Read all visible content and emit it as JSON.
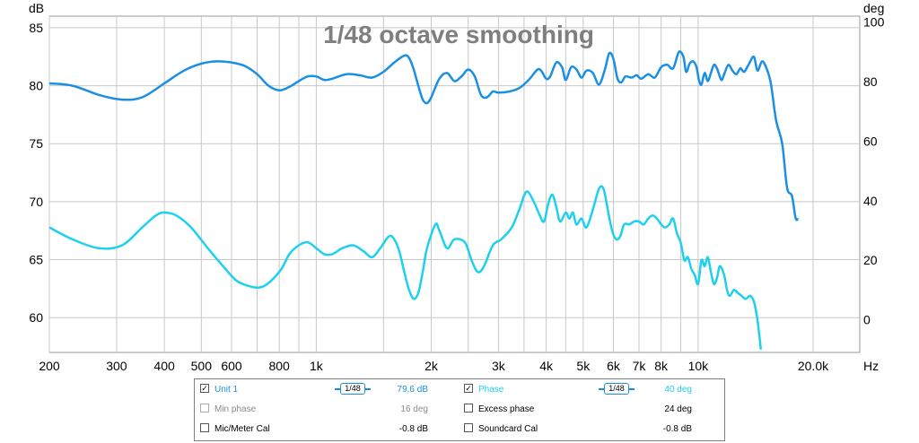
{
  "chart_data": {
    "type": "line",
    "title": "1/48 octave smoothing",
    "x_unit": "Hz",
    "y_left_unit": "dB",
    "y_right_unit": "deg",
    "x_scale": "log",
    "xlim": [
      200,
      26500
    ],
    "ylim_left": [
      57,
      86
    ],
    "ylim_right": [
      -11,
      102
    ],
    "grid": true,
    "x_ticks": [
      {
        "value": 200,
        "label": "200"
      },
      {
        "value": 300,
        "label": "300"
      },
      {
        "value": 400,
        "label": "400"
      },
      {
        "value": 500,
        "label": "500"
      },
      {
        "value": 600,
        "label": "600"
      },
      {
        "value": 800,
        "label": "800"
      },
      {
        "value": 1000,
        "label": "1k"
      },
      {
        "value": 2000,
        "label": "2k"
      },
      {
        "value": 3000,
        "label": "3k"
      },
      {
        "value": 4000,
        "label": "4k"
      },
      {
        "value": 5000,
        "label": "5k"
      },
      {
        "value": 6000,
        "label": "6k"
      },
      {
        "value": 7000,
        "label": "7k"
      },
      {
        "value": 8000,
        "label": "8k"
      },
      {
        "value": 10000,
        "label": "10k"
      },
      {
        "value": 20000,
        "label": "20.0k"
      }
    ],
    "x_minor_grid": [
      700,
      900,
      1500,
      2500,
      3500,
      4500,
      9000
    ],
    "y_left_ticks": [
      60,
      65,
      70,
      75,
      80,
      85
    ],
    "y_right_ticks": [
      0,
      20,
      40,
      60,
      80,
      100
    ],
    "series": [
      {
        "name": "Unit 1",
        "axis": "left",
        "color": "#1a8fe3",
        "points": [
          [
            200,
            80.2
          ],
          [
            230,
            80.0
          ],
          [
            270,
            79.2
          ],
          [
            310,
            78.8
          ],
          [
            350,
            79.0
          ],
          [
            400,
            80.2
          ],
          [
            450,
            81.3
          ],
          [
            500,
            81.9
          ],
          [
            550,
            82.1
          ],
          [
            600,
            82.0
          ],
          [
            650,
            81.7
          ],
          [
            700,
            81.0
          ],
          [
            750,
            80.0
          ],
          [
            800,
            79.6
          ],
          [
            850,
            79.9
          ],
          [
            900,
            80.4
          ],
          [
            950,
            80.8
          ],
          [
            1000,
            80.8
          ],
          [
            1050,
            80.5
          ],
          [
            1100,
            80.6
          ],
          [
            1200,
            81.0
          ],
          [
            1300,
            80.9
          ],
          [
            1400,
            80.7
          ],
          [
            1500,
            81.2
          ],
          [
            1600,
            82.0
          ],
          [
            1700,
            82.6
          ],
          [
            1750,
            82.4
          ],
          [
            1800,
            81.4
          ],
          [
            1850,
            80.0
          ],
          [
            1900,
            78.8
          ],
          [
            1950,
            78.5
          ],
          [
            2000,
            79.0
          ],
          [
            2100,
            80.6
          ],
          [
            2200,
            81.1
          ],
          [
            2300,
            80.4
          ],
          [
            2400,
            80.8
          ],
          [
            2500,
            81.4
          ],
          [
            2600,
            80.8
          ],
          [
            2700,
            79.2
          ],
          [
            2800,
            79.0
          ],
          [
            2900,
            79.5
          ],
          [
            3000,
            79.4
          ],
          [
            3200,
            79.5
          ],
          [
            3400,
            79.8
          ],
          [
            3600,
            80.5
          ],
          [
            3800,
            81.4
          ],
          [
            3900,
            81.2
          ],
          [
            4000,
            80.6
          ],
          [
            4100,
            80.8
          ],
          [
            4250,
            82.0
          ],
          [
            4400,
            81.6
          ],
          [
            4500,
            80.5
          ],
          [
            4650,
            81.6
          ],
          [
            4800,
            81.4
          ],
          [
            4950,
            80.7
          ],
          [
            5100,
            81.3
          ],
          [
            5300,
            81.1
          ],
          [
            5500,
            80.1
          ],
          [
            5700,
            81.4
          ],
          [
            5850,
            82.8
          ],
          [
            6000,
            82.3
          ],
          [
            6150,
            80.6
          ],
          [
            6300,
            80.3
          ],
          [
            6450,
            80.8
          ],
          [
            6700,
            80.7
          ],
          [
            6900,
            80.9
          ],
          [
            7100,
            80.6
          ],
          [
            7400,
            81.0
          ],
          [
            7700,
            80.7
          ],
          [
            8000,
            81.6
          ],
          [
            8300,
            81.8
          ],
          [
            8600,
            81.5
          ],
          [
            8900,
            82.9
          ],
          [
            9150,
            82.5
          ],
          [
            9300,
            81.2
          ],
          [
            9500,
            81.9
          ],
          [
            9700,
            82.1
          ],
          [
            9900,
            81.6
          ],
          [
            10050,
            80.5
          ],
          [
            10200,
            80.1
          ],
          [
            10400,
            81.1
          ],
          [
            10600,
            80.4
          ],
          [
            10800,
            81.1
          ],
          [
            11000,
            81.8
          ],
          [
            11200,
            81.5
          ],
          [
            11500,
            80.5
          ],
          [
            11700,
            81.0
          ],
          [
            12000,
            81.8
          ],
          [
            12300,
            81.3
          ],
          [
            12600,
            81.0
          ],
          [
            12900,
            81.5
          ],
          [
            13200,
            81.2
          ],
          [
            13600,
            81.9
          ],
          [
            14000,
            82.5
          ],
          [
            14300,
            81.3
          ],
          [
            14700,
            82.1
          ],
          [
            15100,
            81.5
          ],
          [
            15500,
            80.2
          ],
          [
            16000,
            77.0
          ],
          [
            16600,
            75.0
          ],
          [
            17100,
            71.2
          ],
          [
            17600,
            70.5
          ],
          [
            18000,
            68.6
          ],
          [
            18300,
            68.5
          ]
        ]
      },
      {
        "name": "Phase",
        "axis": "right",
        "color": "#1dd0f0",
        "points": [
          [
            200,
            31
          ],
          [
            230,
            27
          ],
          [
            270,
            24
          ],
          [
            310,
            25
          ],
          [
            350,
            31
          ],
          [
            380,
            35
          ],
          [
            400,
            36
          ],
          [
            430,
            35
          ],
          [
            470,
            31
          ],
          [
            520,
            24
          ],
          [
            570,
            18
          ],
          [
            620,
            13
          ],
          [
            680,
            11
          ],
          [
            720,
            11
          ],
          [
            760,
            13
          ],
          [
            810,
            17
          ],
          [
            850,
            22
          ],
          [
            900,
            25
          ],
          [
            950,
            26
          ],
          [
            1000,
            24
          ],
          [
            1050,
            22
          ],
          [
            1100,
            22
          ],
          [
            1170,
            24
          ],
          [
            1250,
            25
          ],
          [
            1330,
            23
          ],
          [
            1400,
            21
          ],
          [
            1470,
            24
          ],
          [
            1550,
            28
          ],
          [
            1600,
            27
          ],
          [
            1650,
            23
          ],
          [
            1700,
            16
          ],
          [
            1750,
            10
          ],
          [
            1800,
            7
          ],
          [
            1850,
            9
          ],
          [
            1900,
            16
          ],
          [
            1950,
            24
          ],
          [
            2050,
            32
          ],
          [
            2100,
            30
          ],
          [
            2200,
            24
          ],
          [
            2300,
            27
          ],
          [
            2450,
            26
          ],
          [
            2550,
            20
          ],
          [
            2650,
            16
          ],
          [
            2750,
            18
          ],
          [
            2900,
            25
          ],
          [
            3050,
            27
          ],
          [
            3250,
            31
          ],
          [
            3400,
            37
          ],
          [
            3550,
            43
          ],
          [
            3700,
            40
          ],
          [
            3850,
            35
          ],
          [
            3950,
            33
          ],
          [
            4050,
            39
          ],
          [
            4150,
            42
          ],
          [
            4250,
            38
          ],
          [
            4350,
            33
          ],
          [
            4500,
            36
          ],
          [
            4600,
            34
          ],
          [
            4700,
            36
          ],
          [
            4800,
            32
          ],
          [
            4950,
            34
          ],
          [
            5100,
            31
          ],
          [
            5300,
            37
          ],
          [
            5500,
            44
          ],
          [
            5650,
            44
          ],
          [
            5800,
            37
          ],
          [
            5950,
            30
          ],
          [
            6100,
            27
          ],
          [
            6250,
            28
          ],
          [
            6400,
            32
          ],
          [
            6600,
            32
          ],
          [
            6800,
            33
          ],
          [
            7000,
            33
          ],
          [
            7200,
            32
          ],
          [
            7400,
            34
          ],
          [
            7600,
            35
          ],
          [
            7800,
            34
          ],
          [
            8000,
            32
          ],
          [
            8200,
            31
          ],
          [
            8400,
            32
          ],
          [
            8600,
            34
          ],
          [
            8800,
            29
          ],
          [
            9000,
            26
          ],
          [
            9200,
            20
          ],
          [
            9400,
            21
          ],
          [
            9600,
            17
          ],
          [
            9800,
            15
          ],
          [
            10000,
            12
          ],
          [
            10200,
            20
          ],
          [
            10400,
            18
          ],
          [
            10600,
            21
          ],
          [
            10800,
            16
          ],
          [
            11000,
            12
          ],
          [
            11200,
            14
          ],
          [
            11400,
            18
          ],
          [
            11700,
            15
          ],
          [
            11900,
            10
          ],
          [
            12100,
            8
          ],
          [
            12400,
            10
          ],
          [
            12700,
            9
          ],
          [
            13000,
            8
          ],
          [
            13300,
            7
          ],
          [
            13700,
            8
          ],
          [
            14000,
            6
          ],
          [
            14300,
            0
          ],
          [
            14600,
            -10
          ]
        ]
      }
    ]
  },
  "legend": {
    "rows": [
      {
        "left": {
          "checked": true,
          "label": "Unit 1",
          "smoothing": "1/48",
          "value": "79.6 dB",
          "color": "#1a8fe3"
        },
        "right": {
          "checked": true,
          "label": "Phase",
          "smoothing": "1/48",
          "value": "40 deg",
          "color": "#1dd0f0"
        }
      },
      {
        "left": {
          "checked": false,
          "label": "Min phase",
          "smoothing": "",
          "value": "16 deg",
          "color": "#8a8a8a"
        },
        "right": {
          "checked": false,
          "label": "Excess phase",
          "smoothing": "",
          "value": "24 deg",
          "color": "#000000"
        }
      },
      {
        "left": {
          "checked": false,
          "label": "Mic/Meter Cal",
          "smoothing": "",
          "value": "-0.8 dB",
          "color": "#000000"
        },
        "right": {
          "checked": false,
          "label": "Soundcard Cal",
          "smoothing": "",
          "value": "-0.8 dB",
          "color": "#000000"
        }
      }
    ]
  }
}
